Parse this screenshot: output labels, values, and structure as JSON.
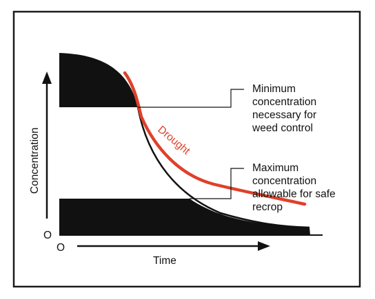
{
  "axes": {
    "ylabel": "Concentration",
    "xlabel": "Time",
    "origin_y_label": "O",
    "origin_x_label": "O"
  },
  "curves": {
    "drought_label": "Drought"
  },
  "annotations": {
    "minimum": [
      "Minimum",
      "concentration",
      "necessary for",
      "weed control"
    ],
    "maximum": [
      "Maximum",
      "concentration",
      "allowable for safe",
      "recrop"
    ]
  },
  "colors": {
    "drought": "#e0402a",
    "ink": "#111111",
    "frame": "#1a1a1a"
  }
}
